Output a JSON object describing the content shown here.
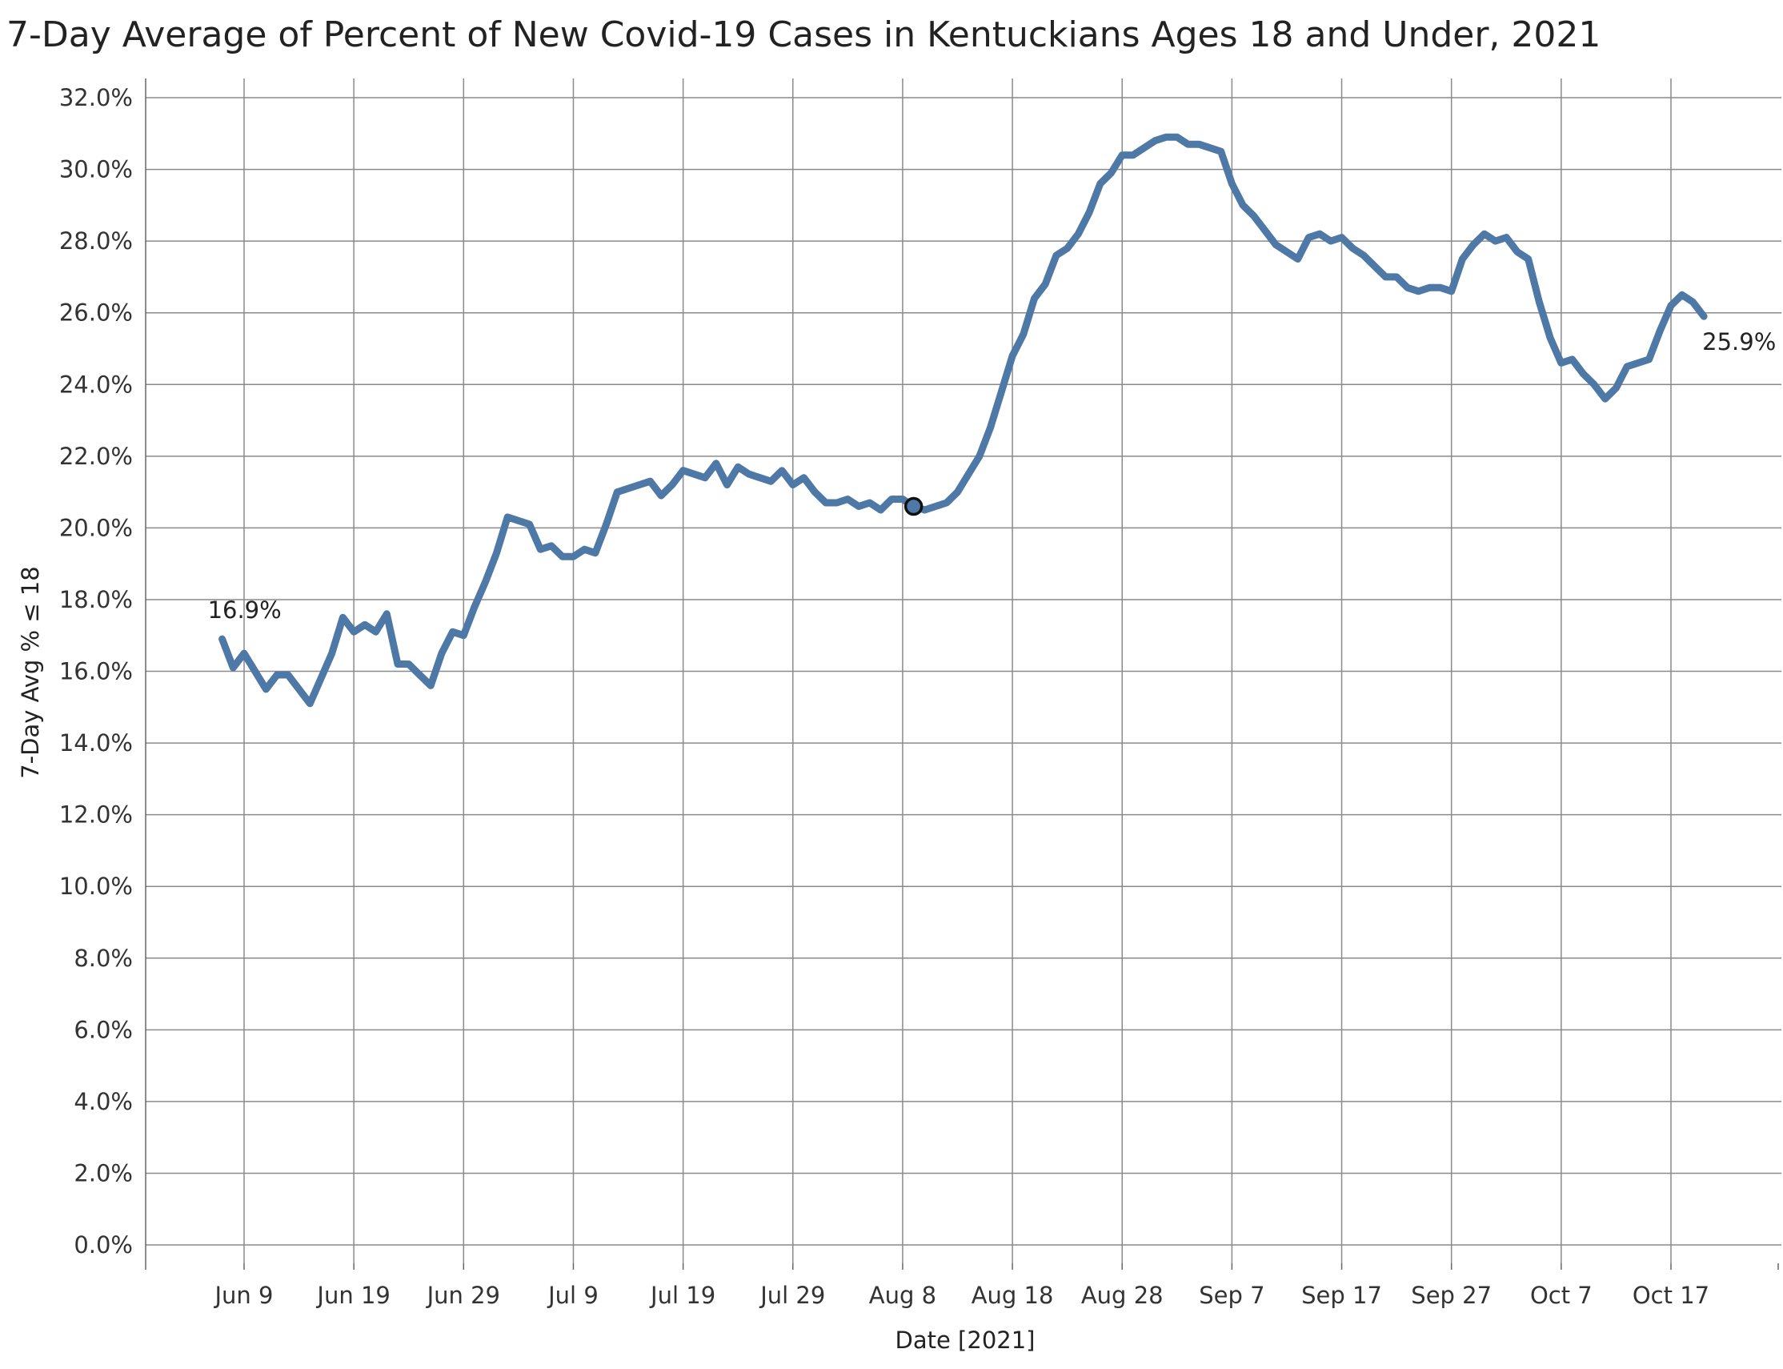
{
  "chart_data": {
    "type": "line",
    "title": "7-Day Average of Percent of New Covid-19 Cases in Kentuckians Ages 18 and Under, 2021",
    "xlabel": "Date [2021]",
    "ylabel": "7-Day Avg  % ≤ 18",
    "x_start_date": "2021-06-07",
    "y_ticks": [
      "0.0%",
      "2.0%",
      "4.0%",
      "6.0%",
      "8.0%",
      "10.0%",
      "12.0%",
      "14.0%",
      "16.0%",
      "18.0%",
      "20.0%",
      "22.0%",
      "24.0%",
      "26.0%",
      "28.0%",
      "30.0%",
      "32.0%"
    ],
    "ylim": [
      0,
      32
    ],
    "x_ticks": [
      {
        "label": "Jun 9",
        "date": "2021-06-09"
      },
      {
        "label": "Jun 19",
        "date": "2021-06-19"
      },
      {
        "label": "Jun 29",
        "date": "2021-06-29"
      },
      {
        "label": "Jul 9",
        "date": "2021-07-09"
      },
      {
        "label": "Jul 19",
        "date": "2021-07-19"
      },
      {
        "label": "Jul 29",
        "date": "2021-07-29"
      },
      {
        "label": "Aug 8",
        "date": "2021-08-08"
      },
      {
        "label": "Aug 18",
        "date": "2021-08-18"
      },
      {
        "label": "Aug 28",
        "date": "2021-08-28"
      },
      {
        "label": "Sep 7",
        "date": "2021-09-07"
      },
      {
        "label": "Sep 17",
        "date": "2021-09-17"
      },
      {
        "label": "Sep 27",
        "date": "2021-09-27"
      },
      {
        "label": "Oct 7",
        "date": "2021-10-07"
      },
      {
        "label": "Oct 17",
        "date": "2021-10-17"
      }
    ],
    "series": [
      {
        "color": "#4e79a7",
        "values": [
          16.9,
          16.1,
          16.5,
          16.0,
          15.5,
          15.9,
          15.9,
          15.5,
          15.1,
          15.8,
          16.5,
          17.5,
          17.1,
          17.3,
          17.1,
          17.6,
          16.2,
          16.2,
          15.9,
          15.6,
          16.5,
          17.1,
          17.0,
          17.8,
          18.5,
          19.3,
          20.3,
          20.2,
          20.1,
          19.4,
          19.5,
          19.2,
          19.2,
          19.4,
          19.3,
          20.1,
          21.0,
          21.1,
          21.2,
          21.3,
          20.9,
          21.2,
          21.6,
          21.5,
          21.4,
          21.8,
          21.2,
          21.7,
          21.5,
          21.4,
          21.3,
          21.6,
          21.2,
          21.4,
          21.0,
          20.7,
          20.7,
          20.8,
          20.6,
          20.7,
          20.5,
          20.8,
          20.8,
          20.6,
          20.5,
          20.6,
          20.7,
          21.0,
          21.5,
          22.0,
          22.8,
          23.8,
          24.8,
          25.4,
          26.4,
          26.8,
          27.6,
          27.8,
          28.2,
          28.8,
          29.6,
          29.9,
          30.4,
          30.4,
          30.6,
          30.8,
          30.9,
          30.9,
          30.7,
          30.7,
          30.6,
          30.5,
          29.6,
          29.0,
          28.7,
          28.3,
          27.9,
          27.7,
          27.5,
          28.1,
          28.2,
          28.0,
          28.1,
          27.8,
          27.6,
          27.3,
          27.0,
          27.0,
          26.7,
          26.6,
          26.7,
          26.7,
          26.6,
          27.5,
          27.9,
          28.2,
          28.0,
          28.1,
          27.7,
          27.5,
          26.3,
          25.3,
          24.6,
          24.7,
          24.3,
          24.0,
          23.6,
          23.9,
          24.5,
          24.6,
          24.7,
          25.5,
          26.2,
          26.5,
          26.3,
          25.9
        ]
      }
    ],
    "annotations": [
      {
        "text": "16.9%",
        "point": "first"
      },
      {
        "text": "25.9%",
        "point": "last"
      }
    ],
    "highlight_marker": {
      "date": "2021-08-09",
      "value": 20.6
    },
    "grid": true
  }
}
